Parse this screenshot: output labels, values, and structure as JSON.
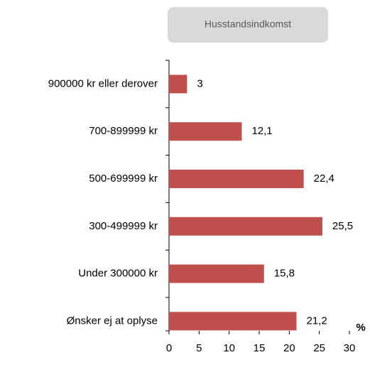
{
  "chart_data": {
    "type": "bar",
    "orientation": "horizontal",
    "title": "Husstandsindkomst",
    "categories": [
      "900000 kr eller derover",
      "700-899999 kr",
      "500-699999 kr",
      "300-499999 kr",
      "Under 300000 kr",
      "Ønsker ej at oplyse"
    ],
    "values": [
      3,
      12.1,
      22.4,
      25.5,
      15.8,
      21.2
    ],
    "value_labels": [
      "3",
      "12,1",
      "22,4",
      "25,5",
      "15,8",
      "21,2"
    ],
    "color": "#c0504d",
    "xlim": [
      0,
      30
    ],
    "xticks": [
      0,
      5,
      10,
      15,
      20,
      25,
      30
    ],
    "x_label": "%",
    "grid": false
  }
}
